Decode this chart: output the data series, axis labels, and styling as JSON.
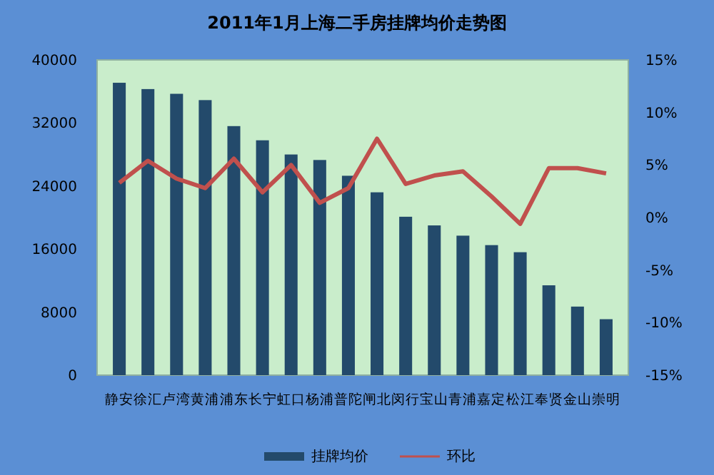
{
  "chart_data": {
    "type": "bar",
    "title": "2011年1月上海二手房挂牌均价走势图",
    "categories": [
      "静安",
      "徐汇",
      "卢湾",
      "黄浦",
      "浦东",
      "长宁",
      "虹口",
      "杨浦",
      "普陀",
      "闸北",
      "闵行",
      "宝山",
      "青浦",
      "嘉定",
      "松江",
      "奉贤",
      "金山",
      "崇明"
    ],
    "series": [
      {
        "name": "挂牌均价",
        "color": "#234a6b",
        "values": [
          37100,
          36300,
          35700,
          34900,
          31600,
          29800,
          28000,
          27300,
          25300,
          23200,
          20100,
          19000,
          17700,
          16500,
          15600,
          11400,
          8700,
          7100
        ]
      },
      {
        "name": "环比",
        "type": "line",
        "axis": "y2",
        "color": "#c0504d",
        "values": [
          3.3,
          5.4,
          3.7,
          2.8,
          5.6,
          2.4,
          5.0,
          1.4,
          2.8,
          7.5,
          3.2,
          4.0,
          4.4,
          2.0,
          -0.6,
          4.7,
          4.7,
          4.2
        ]
      }
    ],
    "ylim": [
      0,
      40000
    ],
    "yticks": [
      0,
      8000,
      16000,
      24000,
      32000,
      40000
    ],
    "y2lim": [
      -15,
      15
    ],
    "y2ticks": [
      {
        "value": -15,
        "label": "-15%"
      },
      {
        "value": -10,
        "label": "-10%"
      },
      {
        "value": -5,
        "label": "-5%"
      },
      {
        "value": 0,
        "label": "0%"
      },
      {
        "value": 5,
        "label": "5%"
      },
      {
        "value": 10,
        "label": "10%"
      },
      {
        "value": 15,
        "label": "15%"
      }
    ],
    "legend": "bottom"
  }
}
